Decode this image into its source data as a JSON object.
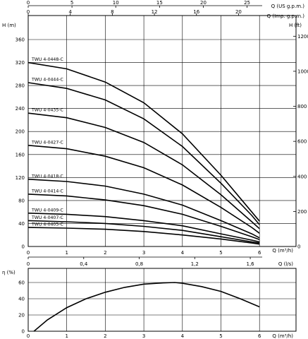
{
  "chart_data": [
    {
      "type": "line",
      "title": "",
      "xlabel": "Q (m³/h)",
      "ylabel": "H (m)",
      "ylabel_right": "H (ft)",
      "xlim": [
        0,
        7
      ],
      "ylim": [
        0,
        380
      ],
      "grid": true,
      "legend": "curve labels at left end",
      "x_ticks": [
        "0",
        "1",
        "2",
        "3",
        "4",
        "5",
        "6"
      ],
      "y_ticks": [
        "0",
        "40",
        "80",
        "120",
        "160",
        "200",
        "240",
        "280",
        "320",
        "360"
      ],
      "y_right_ticks": [
        "0",
        "200",
        "400",
        "600",
        "800",
        "1000",
        "1200"
      ],
      "top_axis_1": {
        "label": "Q (US g.p.m.)",
        "ticks": [
          "0",
          "5",
          "10",
          "15",
          "20",
          "25"
        ]
      },
      "top_axis_2": {
        "label": "Q (Imp. g.p.m.)",
        "ticks": [
          "0",
          "4",
          "8",
          "12",
          "16",
          "20"
        ]
      },
      "bottom_axis_2": {
        "label": "Q (l/s)",
        "ticks": [
          "0",
          "0,4",
          "0,8",
          "1,2",
          "1,6"
        ]
      },
      "series": [
        {
          "name": "TWU 4-0448-C",
          "x": [
            0,
            1,
            2,
            3,
            4,
            5,
            5.8,
            6.0
          ],
          "y": [
            320,
            309,
            286,
            250,
            196,
            124,
            60,
            44
          ]
        },
        {
          "name": "TWU 4-0444-C",
          "x": [
            0,
            1,
            2,
            3,
            4,
            5,
            5.8,
            6.0
          ],
          "y": [
            285,
            275,
            255,
            222,
            174,
            110,
            54,
            38
          ]
        },
        {
          "name": "TWU 4-0435-C",
          "x": [
            0,
            1,
            2,
            3,
            4,
            5,
            5.8,
            6.0
          ],
          "y": [
            232,
            224,
            207,
            181,
            142,
            90,
            43,
            31
          ]
        },
        {
          "name": "TWU 4-0427-C",
          "x": [
            0,
            1,
            2,
            3,
            4,
            5,
            5.8,
            6.0
          ],
          "y": [
            176,
            170,
            157,
            137,
            107,
            68,
            33,
            23
          ]
        },
        {
          "name": "TWU 4-0418-C",
          "x": [
            0,
            1,
            2,
            3,
            4,
            5,
            5.8,
            6.0
          ],
          "y": [
            117,
            113,
            105,
            91,
            72,
            45,
            22,
            15
          ]
        },
        {
          "name": "TWU 4-0414-C",
          "x": [
            0,
            1,
            2,
            3,
            4,
            5,
            5.8,
            6.0
          ],
          "y": [
            91,
            88,
            81,
            71,
            56,
            35,
            17,
            12
          ]
        },
        {
          "name": "TWU 4-0409-C",
          "x": [
            0,
            1,
            2,
            3,
            4,
            5,
            5.8,
            6.0
          ],
          "y": [
            58,
            56,
            52,
            45,
            36,
            22,
            11,
            8
          ]
        },
        {
          "name": "TWU 4-0407-C",
          "x": [
            0,
            1,
            2,
            3,
            4,
            5,
            5.8,
            6.0
          ],
          "y": [
            45,
            43,
            40,
            35,
            28,
            17,
            8,
            6
          ]
        },
        {
          "name": "TWU 4-0405-C",
          "x": [
            0,
            1,
            2,
            3,
            4,
            5,
            5.8,
            6.0
          ],
          "y": [
            33,
            32,
            30,
            26,
            20,
            13,
            6,
            4
          ]
        }
      ]
    },
    {
      "type": "line",
      "title": "",
      "xlabel": "Q (m³/h)",
      "ylabel": "η (%)",
      "xlim": [
        0,
        7
      ],
      "ylim": [
        0,
        68
      ],
      "grid": true,
      "x_ticks": [
        "0",
        "1",
        "2",
        "3",
        "4",
        "5",
        "6"
      ],
      "y_ticks": [
        "0",
        "20",
        "40",
        "60"
      ],
      "series": [
        {
          "name": "",
          "x": [
            0,
            0.5,
            1,
            1.5,
            2,
            2.5,
            3,
            3.5,
            3.8,
            4,
            4.5,
            5,
            5.5,
            6
          ],
          "y": [
            -6,
            14,
            29,
            40,
            48,
            54,
            58,
            59.5,
            60,
            59,
            55,
            49,
            40,
            30
          ]
        }
      ]
    }
  ]
}
